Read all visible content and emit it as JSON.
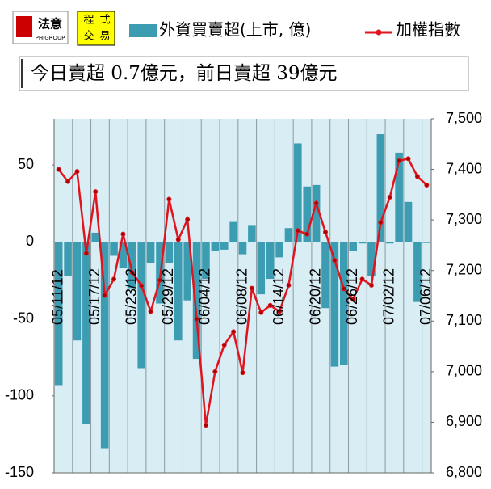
{
  "logo1": {
    "text": "法意",
    "sub": "PHIGROUP"
  },
  "logo2": [
    "程",
    "式",
    "交",
    "易"
  ],
  "chart_data": {
    "type": "bar",
    "subtitle": "今日賣超 0.7億元，前日賣超 39億元",
    "categories": [
      "05/11/12",
      null,
      null,
      null,
      "05/17/12",
      null,
      null,
      null,
      "05/23/12",
      null,
      null,
      null,
      "05/29/12",
      null,
      null,
      null,
      "06/04/12",
      null,
      null,
      null,
      "06/08/12",
      null,
      null,
      null,
      "06/14/12",
      null,
      null,
      null,
      "06/20/12",
      null,
      null,
      null,
      "06/26/12",
      null,
      null,
      null,
      "07/02/12",
      null,
      null,
      null,
      "07/06/12"
    ],
    "series": [
      {
        "name": "外資買賣超(上市, 億)",
        "type": "bar",
        "color": "#3b9cb2",
        "values": [
          -93,
          -22,
          -64,
          -118,
          6,
          -134,
          -9,
          -17,
          -30,
          -82,
          -14,
          -40,
          -14,
          -64,
          -38,
          -76,
          -24,
          -6,
          -5,
          13,
          -8,
          11,
          -34,
          -24,
          -10,
          9,
          64,
          36,
          37,
          -43,
          -81,
          -80,
          -6,
          -1,
          -22,
          70,
          -1,
          58,
          26,
          -39,
          -0.7
        ]
      },
      {
        "name": "加權指數",
        "type": "line",
        "axis": "y2",
        "color": "#e0141e",
        "values": [
          7400,
          7376,
          7396,
          7234,
          7356,
          7151,
          7183,
          7272,
          7196,
          7170,
          7119,
          7181,
          7341,
          7261,
          7301,
          7104,
          6894,
          7000,
          7053,
          7079,
          6998,
          7165,
          7117,
          7131,
          7119,
          7171,
          7279,
          7272,
          7333,
          7276,
          7220,
          7164,
          7143,
          7183,
          7171,
          7295,
          7345,
          7417,
          7421,
          7386,
          7369
        ]
      }
    ],
    "ylim": [
      -150,
      80
    ],
    "yticks": [
      -150,
      -100,
      -50,
      0,
      50
    ],
    "y2lim": [
      6800,
      7500
    ],
    "y2ticks": [
      {
        "value": 6800,
        "label": "6,800"
      },
      {
        "value": 6900,
        "label": "6,900"
      },
      {
        "value": 7000,
        "label": "7,000"
      },
      {
        "value": 7100,
        "label": "7,100"
      },
      {
        "value": 7200,
        "label": "7,200"
      },
      {
        "value": 7300,
        "label": "7,300"
      },
      {
        "value": 7400,
        "label": "7,400"
      },
      {
        "value": 7500,
        "label": "7,500"
      }
    ]
  }
}
